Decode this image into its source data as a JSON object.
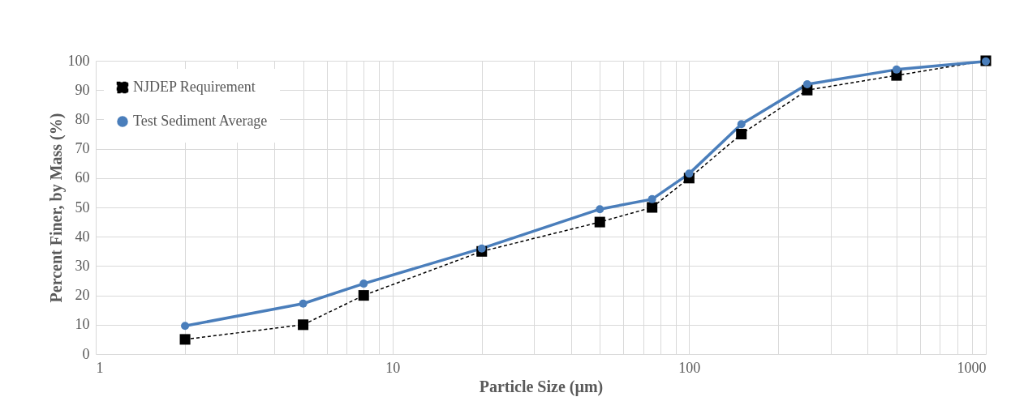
{
  "chart_data": {
    "type": "line",
    "xlabel": "Particle Size (µm)",
    "ylabel": "Percent Finer, by Mass (%)",
    "log": "x",
    "grid": true,
    "legend": "top left",
    "xlim": [
      1,
      1000
    ],
    "ylim": [
      0,
      100
    ],
    "xticks": [
      1,
      {
        "value": 2,
        "label": null
      },
      {
        "value": 3,
        "label": null
      },
      {
        "value": 4,
        "label": null
      },
      {
        "value": 5,
        "label": null
      },
      {
        "value": 6,
        "label": null
      },
      {
        "value": 7,
        "label": null
      },
      {
        "value": 8,
        "label": null
      },
      {
        "value": 9,
        "label": null
      },
      10,
      {
        "value": 20,
        "label": null
      },
      {
        "value": 30,
        "label": null
      },
      {
        "value": 40,
        "label": null
      },
      {
        "value": 50,
        "label": null
      },
      {
        "value": 60,
        "label": null
      },
      {
        "value": 70,
        "label": null
      },
      {
        "value": 80,
        "label": null
      },
      {
        "value": 90,
        "label": null
      },
      100,
      {
        "value": 200,
        "label": null
      },
      {
        "value": 300,
        "label": null
      },
      {
        "value": 400,
        "label": null
      },
      {
        "value": 500,
        "label": null
      },
      {
        "value": 600,
        "label": null
      },
      {
        "value": 700,
        "label": null
      },
      {
        "value": 800,
        "label": null
      },
      {
        "value": 900,
        "label": null
      },
      1000
    ],
    "yticks": [
      0,
      10,
      20,
      30,
      40,
      50,
      60,
      70,
      80,
      90,
      100
    ],
    "x": [
      2,
      5,
      8,
      20,
      50,
      75,
      100,
      150,
      250,
      500,
      1000
    ],
    "series": [
      {
        "name": "NJDEP Requirement",
        "color": "#000000",
        "marker": "square",
        "line_style": "dashed",
        "values": [
          5,
          10,
          20,
          35,
          45,
          50,
          60,
          75,
          90,
          95,
          100
        ]
      },
      {
        "name": "Test Sediment Average",
        "color": "#4a7ebb",
        "marker": "circle",
        "line_style": "solid",
        "values": [
          9.6,
          17.2,
          24,
          36,
          49.4,
          52.8,
          61.5,
          78.4,
          92,
          97,
          99.8
        ]
      }
    ]
  }
}
